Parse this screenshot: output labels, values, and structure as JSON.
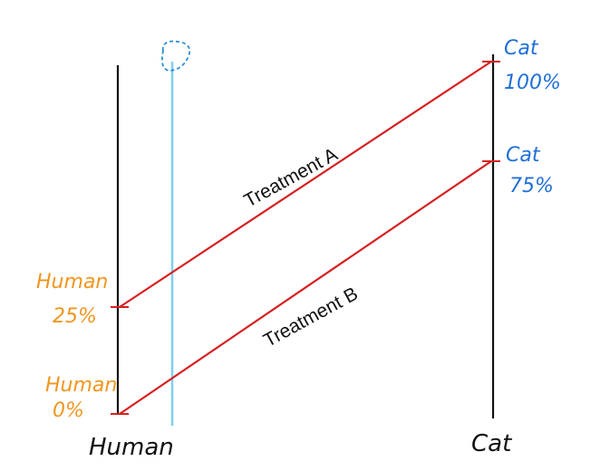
{
  "axes": {
    "left_label": "Human",
    "right_label": "Cat"
  },
  "left_ticks": [
    {
      "line1": "Human",
      "line2": "25%",
      "percent": 25
    },
    {
      "line1": "Human",
      "line2": "0%",
      "percent": 0
    }
  ],
  "right_ticks": [
    {
      "line1": "Cat",
      "line2": "100%",
      "percent": 100
    },
    {
      "line1": "Cat",
      "line2": "75%",
      "percent": 75
    }
  ],
  "treatments": [
    {
      "label": "Treatment A",
      "from_human_percent": 25,
      "to_cat_percent": 100
    },
    {
      "label": "Treatment B",
      "from_human_percent": 0,
      "to_cat_percent": 75
    }
  ],
  "colors": {
    "axis": "#111111",
    "treatment_line": "#d62020",
    "left_tick_text": "#f0961e",
    "right_tick_text": "#1f6fd6",
    "cursor_line": "#7fd0ee",
    "cursor_blob": "#2a8fd0"
  },
  "icons": {
    "cursor_blob": "dashed-blob-icon"
  }
}
